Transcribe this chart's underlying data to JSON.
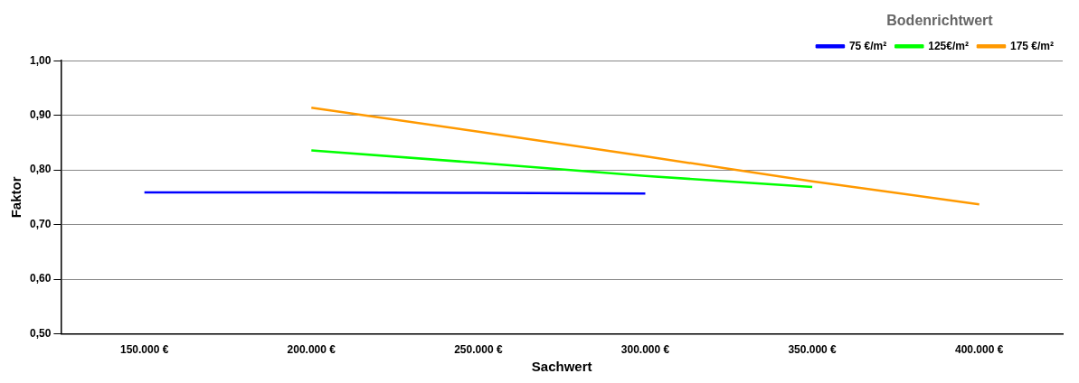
{
  "chart_data": {
    "type": "line",
    "xlabel": "Sachwert",
    "ylabel": "Faktor",
    "legend_title": "Bodenrichtwert",
    "legend": "top right",
    "grid": "y",
    "marker": "none",
    "line_style": "solid",
    "xlim": [
      125000,
      425000
    ],
    "xticks": [
      {
        "value": 150000,
        "label": "150.000 €"
      },
      {
        "value": 200000,
        "label": "200.000 €"
      },
      {
        "value": 250000,
        "label": "250.000 €"
      },
      {
        "value": 300000,
        "label": "300.000 €"
      },
      {
        "value": 350000,
        "label": "350.000 €"
      },
      {
        "value": 400000,
        "label": "400.000 €"
      }
    ],
    "ylim": [
      0.5,
      1.0
    ],
    "yticks": [
      {
        "value": 0.5,
        "label": "0,50"
      },
      {
        "value": 0.6,
        "label": "0,60"
      },
      {
        "value": 0.7,
        "label": "0,70"
      },
      {
        "value": 0.8,
        "label": "0,80"
      },
      {
        "value": 0.9,
        "label": "0,90"
      },
      {
        "value": 1.0,
        "label": "1,00"
      }
    ],
    "series": [
      {
        "name": "75 €/m²",
        "color": "#0000ff",
        "x": [
          150000,
          200000,
          250000,
          300000
        ],
        "values": [
          0.759,
          0.759,
          0.758,
          0.757
        ]
      },
      {
        "name": "125€/m²",
        "color": "#00ff00",
        "x": [
          200000,
          250000,
          300000,
          350000
        ],
        "values": [
          0.836,
          0.813,
          0.789,
          0.769
        ]
      },
      {
        "name": "175 €/m²",
        "color": "#ff9900",
        "x": [
          200000,
          250000,
          300000,
          350000,
          400000
        ],
        "values": [
          0.914,
          0.87,
          0.825,
          0.779,
          0.737
        ]
      }
    ]
  }
}
